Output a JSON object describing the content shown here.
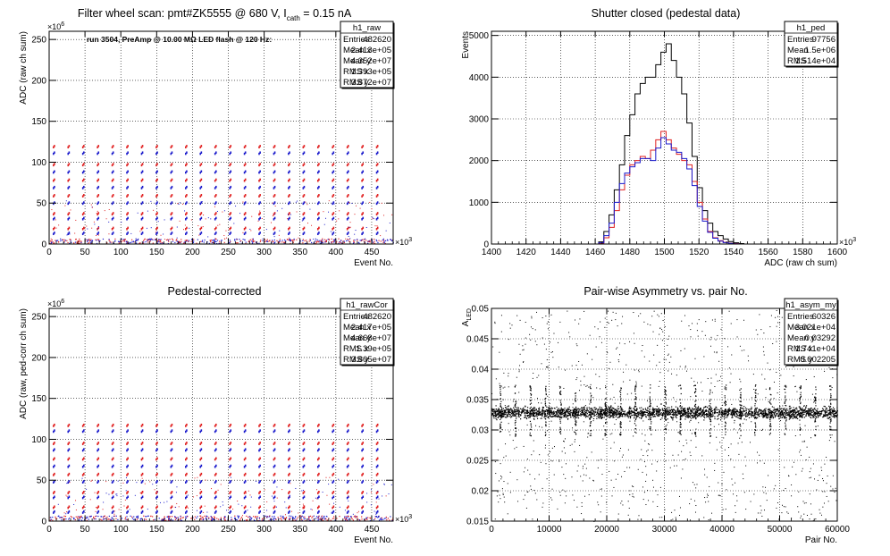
{
  "chart_data": [
    {
      "type": "scatter",
      "title": "Filter wheel scan: pmt#ZK5555 @   680 V, I",
      "title_sub": "cath",
      "title_tail": " = 0.15 nA",
      "annotation": "run 3504, PreAmp @ 10.00 MΩ LED flash @  120 Hz:",
      "xlabel": "Event No.",
      "ylabel": "ADC (raw ch sum)",
      "x_exponent": "×10",
      "x_exp_power": "3",
      "y_exponent": "×10",
      "y_exp_power": "6",
      "xlim": [
        0,
        480
      ],
      "ylim": [
        0,
        260
      ],
      "xticks": [
        "0",
        "50",
        "100",
        "150",
        "200",
        "250",
        "300",
        "350",
        "400",
        "450"
      ],
      "yticks": [
        "0",
        "50",
        "100",
        "150",
        "200",
        "250"
      ],
      "grid": true,
      "stats": {
        "name": "h1_raw",
        "rows": [
          {
            "label": "Entries",
            "value": "482620"
          },
          {
            "label": "Mean x",
            "value": "2.413e+05"
          },
          {
            "label": "Mean y",
            "value": "4.352e+07"
          },
          {
            "label": "RMS x",
            "value": "1.393e+05"
          },
          {
            "label": "RMS y",
            "value": "3.872e+07"
          }
        ]
      },
      "level_groups": [
        [
          118,
          110
        ],
        [
          96,
          87
        ],
        [
          77,
          68
        ],
        [
          58,
          49
        ],
        [
          36,
          30
        ],
        [
          18,
          12
        ]
      ],
      "step_period": 20.5,
      "step_count": 23,
      "colors": {
        "low": "#1a1acc",
        "high": "#e02020"
      }
    },
    {
      "type": "line",
      "title": "Shutter closed (pedestal data)",
      "xlabel": "ADC (raw ch sum)",
      "ylabel": "Events",
      "x_exponent": "×10",
      "x_exp_power": "3",
      "xlim": [
        1400,
        1600
      ],
      "ylim": [
        0,
        5100
      ],
      "xticks": [
        "1400",
        "1420",
        "1440",
        "1460",
        "1480",
        "1500",
        "1520",
        "1540",
        "1560",
        "1580",
        "1600"
      ],
      "yticks": [
        "0",
        "1000",
        "2000",
        "3000",
        "4000",
        "5000"
      ],
      "grid": true,
      "stats": {
        "name": "h1_ped",
        "rows": [
          {
            "label": "Entries",
            "value": "97756"
          },
          {
            "label": "Mean",
            "value": "1.5e+06"
          },
          {
            "label": "RMS",
            "value": "1.514e+04"
          }
        ]
      },
      "series": [
        {
          "color": "#000000",
          "x": [
            1462,
            1465,
            1468,
            1471,
            1474,
            1477,
            1480,
            1483,
            1486,
            1489,
            1492,
            1495,
            1498,
            1501,
            1504,
            1507,
            1510,
            1513,
            1516,
            1519,
            1522,
            1525,
            1528,
            1531,
            1534,
            1537,
            1540,
            1543
          ],
          "values": [
            50,
            300,
            700,
            1300,
            1900,
            2600,
            3100,
            3600,
            3850,
            4000,
            4000,
            4300,
            4600,
            4800,
            4400,
            4000,
            3600,
            2900,
            2100,
            1350,
            800,
            500,
            300,
            200,
            120,
            60,
            30,
            10
          ]
        },
        {
          "color": "#e02020",
          "x": [
            1462,
            1465,
            1468,
            1471,
            1474,
            1477,
            1480,
            1483,
            1486,
            1489,
            1492,
            1495,
            1498,
            1501,
            1504,
            1507,
            1510,
            1513,
            1516,
            1519,
            1522,
            1525,
            1528,
            1531,
            1534,
            1537,
            1540,
            1543
          ],
          "values": [
            20,
            150,
            400,
            800,
            1300,
            1650,
            1900,
            2000,
            2100,
            2050,
            2250,
            2500,
            2700,
            2500,
            2300,
            2150,
            2000,
            1900,
            1500,
            1000,
            600,
            300,
            150,
            80,
            40,
            20,
            10,
            0
          ]
        },
        {
          "color": "#1a1acc",
          "x": [
            1462,
            1465,
            1468,
            1471,
            1474,
            1477,
            1480,
            1483,
            1486,
            1489,
            1492,
            1495,
            1498,
            1501,
            1504,
            1507,
            1510,
            1513,
            1516,
            1519,
            1522,
            1525,
            1528,
            1531,
            1534,
            1537,
            1540,
            1543
          ],
          "values": [
            30,
            200,
            500,
            1000,
            1450,
            1700,
            1850,
            1950,
            2050,
            2050,
            2000,
            2300,
            2550,
            2400,
            2250,
            2200,
            2050,
            1800,
            1400,
            900,
            550,
            280,
            140,
            70,
            35,
            15,
            5,
            0
          ]
        }
      ]
    },
    {
      "type": "scatter",
      "title": "Pedestal-corrected",
      "xlabel": "Event No.",
      "ylabel": "ADC (raw, ped-corr ch sum)",
      "x_exponent": "×10",
      "x_exp_power": "3",
      "y_exponent": "×10",
      "y_exp_power": "6",
      "xlim": [
        0,
        480
      ],
      "ylim": [
        0,
        260
      ],
      "xticks": [
        "0",
        "50",
        "100",
        "150",
        "200",
        "250",
        "300",
        "350",
        "400",
        "450"
      ],
      "yticks": [
        "0",
        "50",
        "100",
        "150",
        "200",
        "250"
      ],
      "grid": true,
      "stats": {
        "name": "h1_rawCor",
        "rows": [
          {
            "label": "Entries",
            "value": "482620"
          },
          {
            "label": "Mean x",
            "value": "2.417e+05"
          },
          {
            "label": "Mean y",
            "value": "4.668e+07"
          },
          {
            "label": "RMS x",
            "value": "1.39e+05"
          },
          {
            "label": "RMS y",
            "value": "3.805e+07"
          }
        ]
      },
      "level_groups": [
        [
          116,
          109
        ],
        [
          94,
          86
        ],
        [
          75,
          66
        ],
        [
          56,
          47
        ],
        [
          34,
          28
        ],
        [
          16,
          10
        ]
      ],
      "step_period": 20.5,
      "step_count": 23,
      "colors": {
        "low": "#1a1acc",
        "high": "#e02020"
      }
    },
    {
      "type": "scatter",
      "title": "Pair-wise Asymmetry vs. pair No.",
      "xlabel": "Pair No.",
      "ylabel": "A",
      "ylabel_sub": "LED",
      "xlim": [
        0,
        60000
      ],
      "ylim": [
        0.015,
        0.05
      ],
      "xticks": [
        "0",
        "10000",
        "20000",
        "30000",
        "40000",
        "50000",
        "60000"
      ],
      "yticks": [
        "0.015",
        "0.02",
        "0.025",
        "0.03",
        "0.035",
        "0.04",
        "0.045",
        "0.05"
      ],
      "grid": true,
      "stats": {
        "name": "h1_asym_my",
        "rows": [
          {
            "label": "Entries",
            "value": "60326"
          },
          {
            "label": "Mean x",
            "value": "3.021e+04"
          },
          {
            "label": "Mean y",
            "value": "0.03292"
          },
          {
            "label": "RMS x",
            "value": "1.741e+04"
          },
          {
            "label": "RMS y",
            "value": "0.002205"
          }
        ]
      },
      "band_center": 0.0329,
      "band_halfwidth": 0.0009,
      "spike_period": 2600,
      "spike_top": 0.0375,
      "spike_bottom": 0.029
    }
  ]
}
